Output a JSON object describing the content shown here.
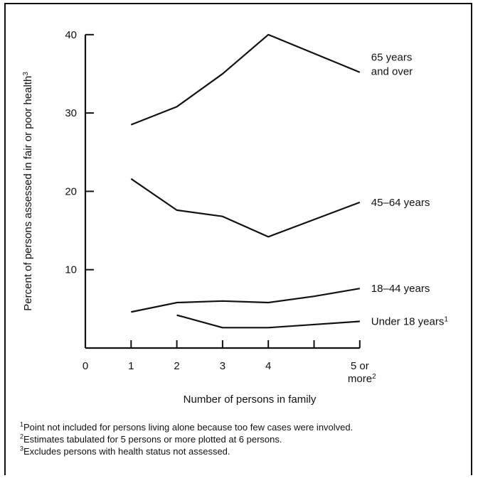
{
  "chart_data": {
    "type": "line",
    "xlabel": "Number of persons in family",
    "ylabel": "Percent of persons assessed in fair or poor health",
    "ylabel_sup": "3",
    "xlim": [
      0,
      6
    ],
    "ylim": [
      0,
      40
    ],
    "x_ticks": [
      {
        "x": 0,
        "label": "0",
        "mark": false,
        "line2": "",
        "sup": ""
      },
      {
        "x": 1,
        "label": "1",
        "mark": true,
        "line2": "",
        "sup": ""
      },
      {
        "x": 2,
        "label": "2",
        "mark": true,
        "line2": "",
        "sup": ""
      },
      {
        "x": 3,
        "label": "3",
        "mark": true,
        "line2": "",
        "sup": ""
      },
      {
        "x": 4,
        "label": "4",
        "mark": true,
        "line2": "",
        "sup": ""
      },
      {
        "x": 5,
        "label": "",
        "mark": true,
        "line2": "",
        "sup": ""
      },
      {
        "x": 6,
        "label": "5 or",
        "mark": true,
        "line2": "more",
        "sup": "2"
      }
    ],
    "y_ticks": [
      10,
      20,
      30,
      40
    ],
    "grid": false,
    "legend": "inline labels at right end of each line",
    "series": [
      {
        "name": "65 years",
        "name_line2": "and over",
        "sup": "",
        "x": [
          1,
          2,
          3,
          4,
          5,
          6
        ],
        "values": [
          28.5,
          30.8,
          35,
          40,
          37.6,
          35.2
        ]
      },
      {
        "name": "45–64 years",
        "name_line2": "",
        "sup": "",
        "x": [
          1,
          2,
          3,
          4,
          5,
          6
        ],
        "values": [
          21.6,
          17.6,
          16.8,
          14.2,
          16.4,
          18.6
        ]
      },
      {
        "name": "18–44 years",
        "name_line2": "",
        "sup": "",
        "x": [
          1,
          2,
          3,
          4,
          5,
          6
        ],
        "values": [
          4.6,
          5.8,
          6,
          5.8,
          6.6,
          7.6
        ]
      },
      {
        "name": "Under 18 years",
        "name_line2": "",
        "sup": "1",
        "x": [
          2,
          3,
          4,
          5,
          6
        ],
        "values": [
          4.2,
          2.6,
          2.6,
          3,
          3.4
        ]
      }
    ]
  },
  "footnotes": [
    {
      "sup": "1",
      "text": "Point not included for persons living alone because too few cases were involved."
    },
    {
      "sup": "2",
      "text": "Estimates tabulated for 5 persons or more plotted at 6 persons."
    },
    {
      "sup": "3",
      "text": "Excludes persons with health status not assessed."
    }
  ]
}
